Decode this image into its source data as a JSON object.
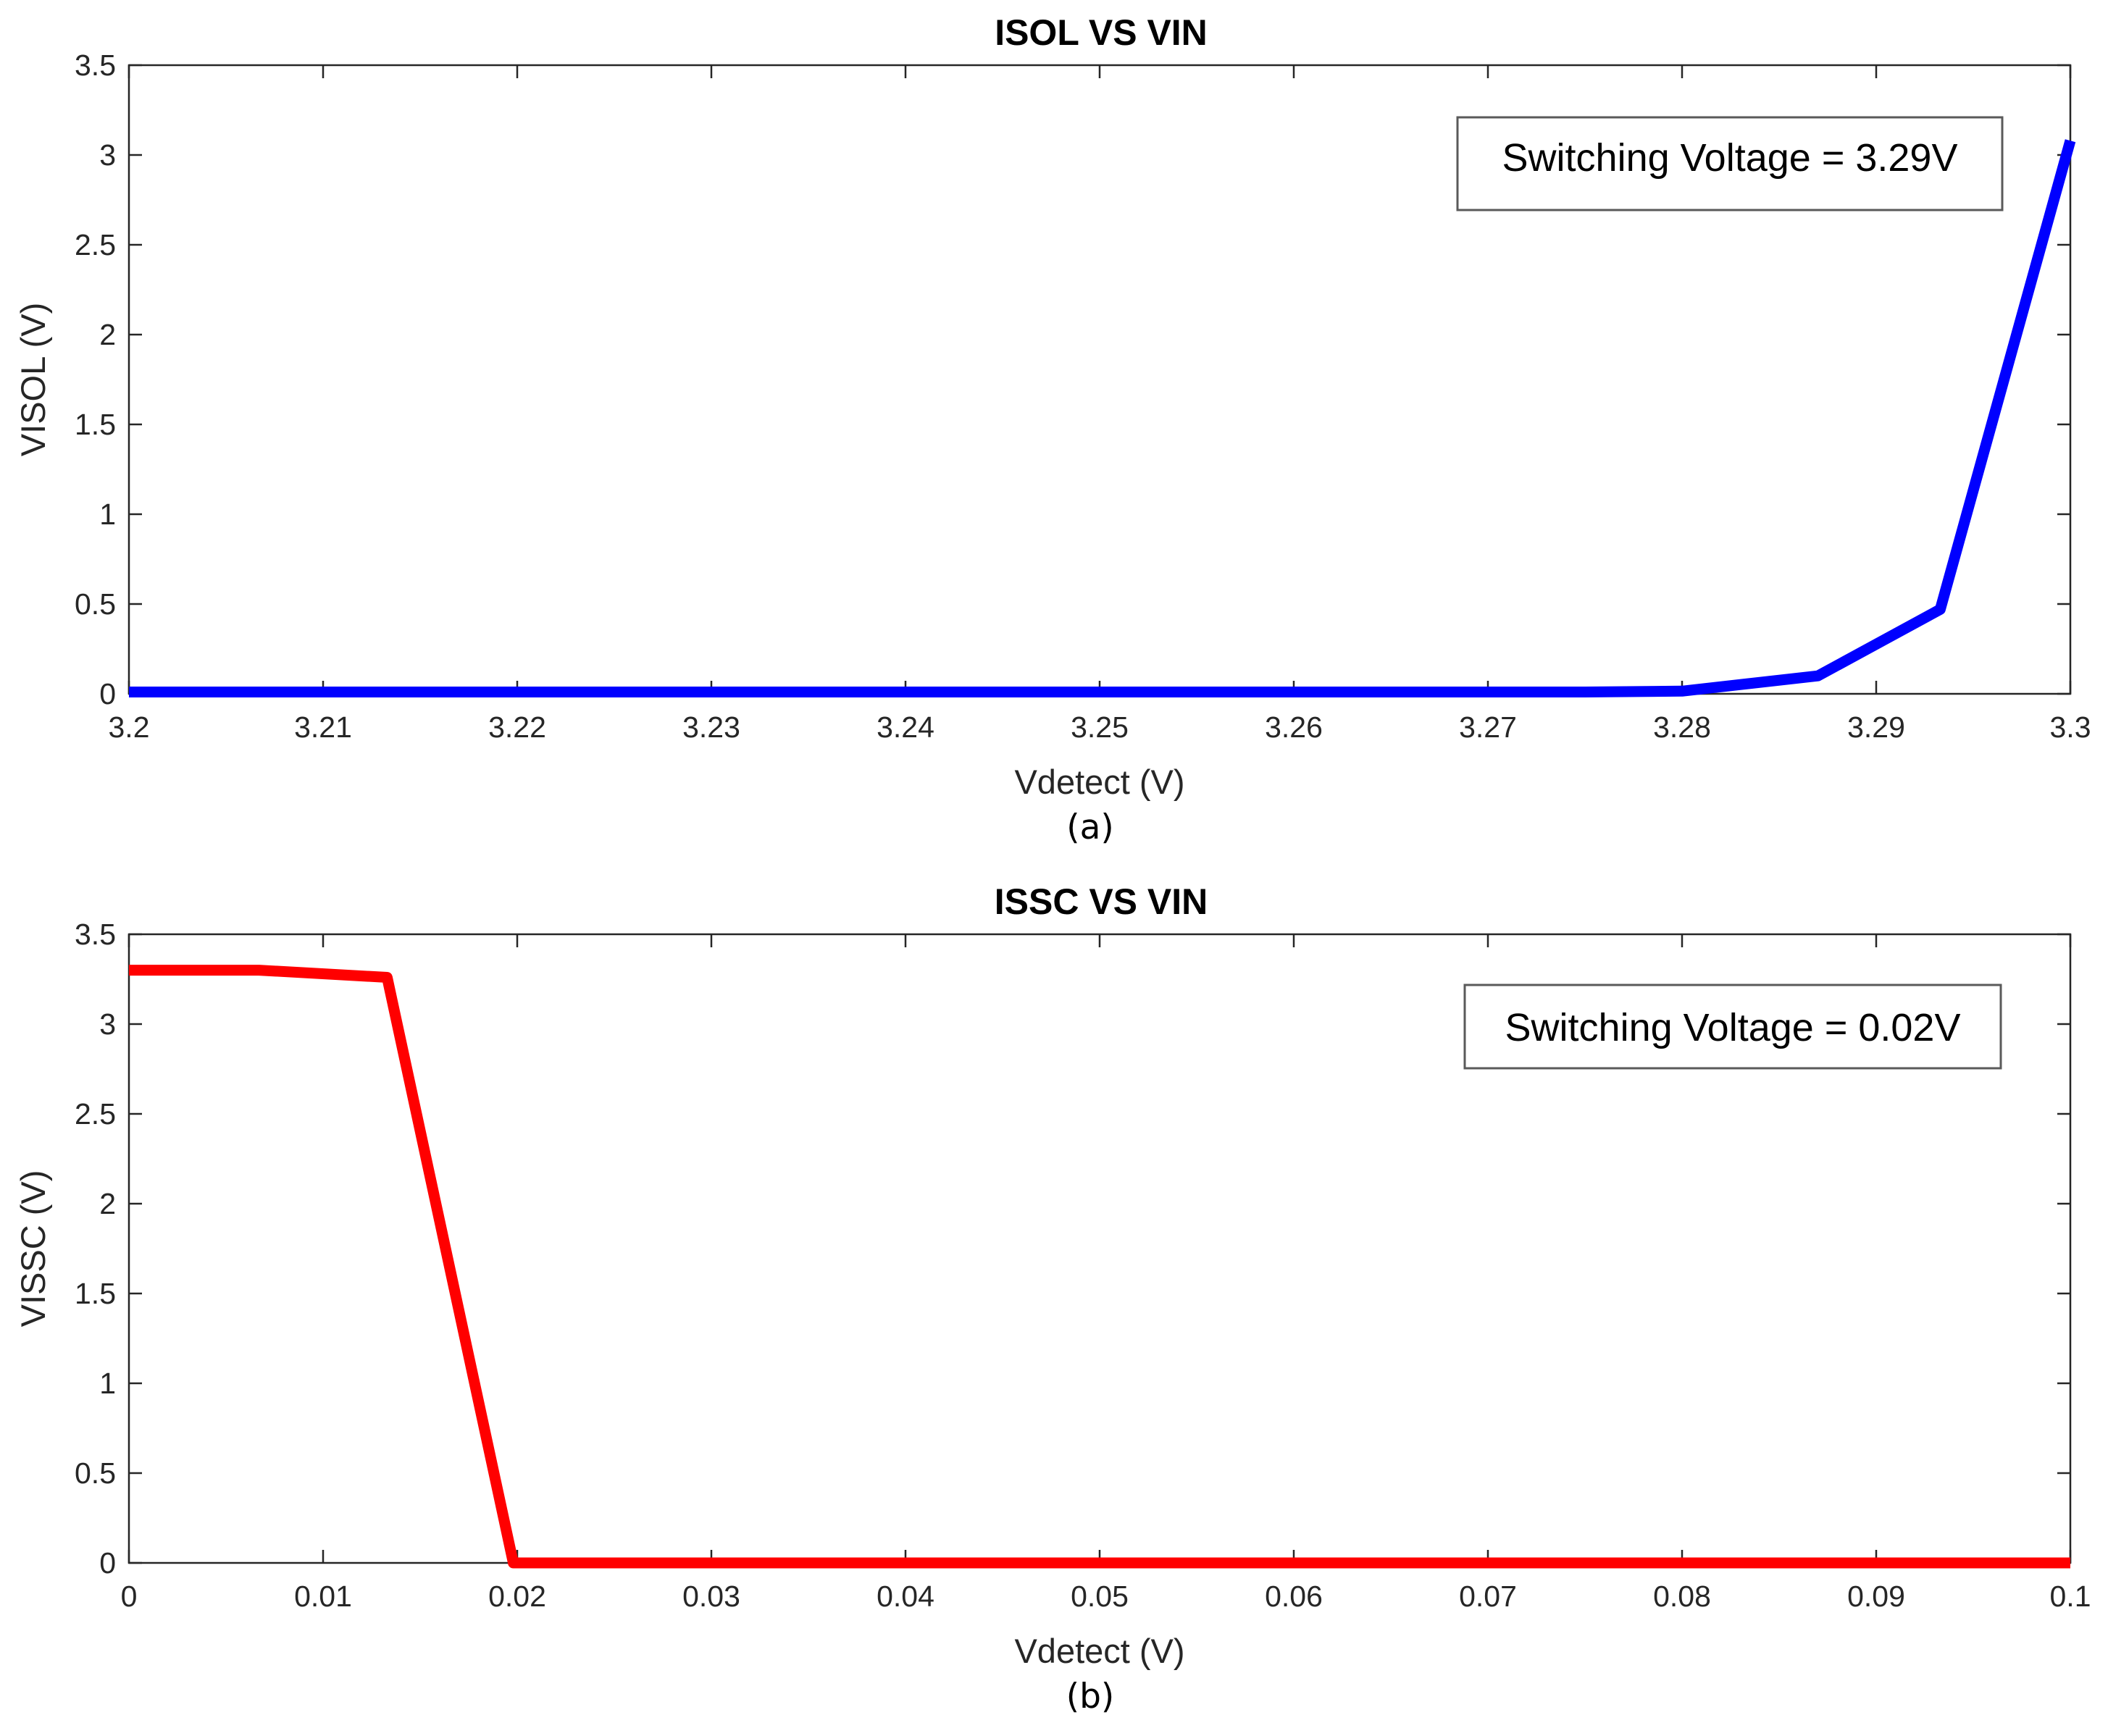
{
  "chart_data": [
    {
      "type": "line",
      "title": "ISOL VS VIN",
      "xlabel": "Vdetect (V)",
      "ylabel": "VISOL (V)",
      "subcaption": "(a)",
      "xlim": [
        3.2,
        3.3
      ],
      "ylim": [
        0,
        3.5
      ],
      "x_ticks": [
        "3.2",
        "3.21",
        "3.22",
        "3.23",
        "3.24",
        "3.25",
        "3.26",
        "3.27",
        "3.28",
        "3.29",
        "3.3"
      ],
      "y_ticks": [
        "0",
        "0.5",
        "1",
        "1.5",
        "2",
        "2.5",
        "3",
        "3.5"
      ],
      "annotation": "Switching Voltage = 3.29V",
      "series": [
        {
          "color": "#0000ff",
          "x": [
            3.2,
            3.21,
            3.22,
            3.23,
            3.24,
            3.25,
            3.26,
            3.27,
            3.275,
            3.28,
            3.287,
            3.2933,
            3.3
          ],
          "y": [
            0.01,
            0.01,
            0.01,
            0.01,
            0.01,
            0.01,
            0.01,
            0.01,
            0.01,
            0.015,
            0.1,
            0.47,
            3.08
          ]
        }
      ],
      "grid": false
    },
    {
      "type": "line",
      "title": "ISSC VS VIN",
      "xlabel": "Vdetect (V)",
      "ylabel": "VISSC (V)",
      "subcaption": "(b)",
      "xlim": [
        0,
        0.1
      ],
      "ylim": [
        0,
        3.5
      ],
      "x_ticks": [
        "0",
        "0.01",
        "0.02",
        "0.03",
        "0.04",
        "0.05",
        "0.06",
        "0.07",
        "0.08",
        "0.09",
        "0.1"
      ],
      "y_ticks": [
        "0",
        "0.5",
        "1",
        "1.5",
        "2",
        "2.5",
        "3",
        "3.5"
      ],
      "annotation": "Switching Voltage = 0.02V",
      "series": [
        {
          "color": "#ff0000",
          "x": [
            0,
            0.0067,
            0.0133,
            0.0198,
            0.03,
            0.04,
            0.05,
            0.06,
            0.07,
            0.08,
            0.09,
            0.1
          ],
          "y": [
            3.3,
            3.3,
            3.26,
            0.0,
            0.0,
            0.0,
            0.0,
            0.0,
            0.0,
            0.0,
            0.0,
            0.0
          ]
        }
      ],
      "grid": false
    }
  ]
}
